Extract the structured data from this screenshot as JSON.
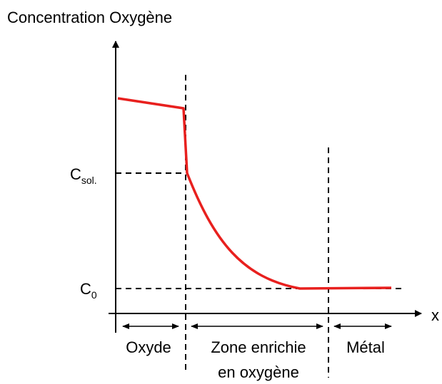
{
  "y_axis_label": "Concentration Oxygène",
  "x_axis_label": "x",
  "levels": [
    {
      "base": "C",
      "sub": "sol."
    },
    {
      "base": "C",
      "sub": "0"
    }
  ],
  "regions": [
    {
      "lines": [
        "Oxyde"
      ]
    },
    {
      "lines": [
        "Zone enrichie",
        "en oxygène"
      ]
    },
    {
      "lines": [
        "Métal"
      ]
    }
  ]
}
